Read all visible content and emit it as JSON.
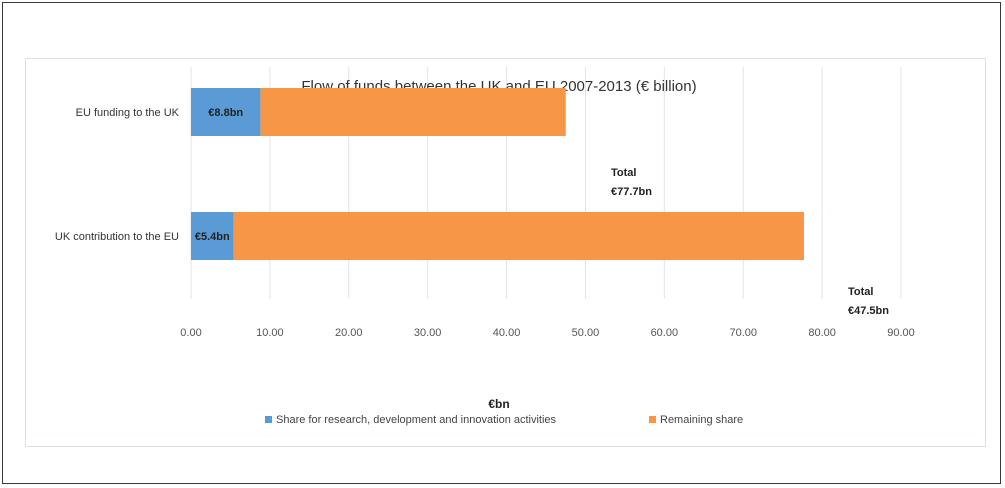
{
  "chart_data": {
    "type": "bar",
    "orientation": "horizontal",
    "stacked": true,
    "title": "Flow of funds between the UK and EU 2007-2013 (€ billion)",
    "xlabel": "€bn",
    "ylabel": "",
    "xlim": [
      0,
      90
    ],
    "x_ticks": [
      "0.00",
      "10.00",
      "20.00",
      "30.00",
      "40.00",
      "50.00",
      "60.00",
      "70.00",
      "80.00",
      "90.00"
    ],
    "categories": [
      "EU funding to the UK",
      "UK contribution to the EU"
    ],
    "series": [
      {
        "name": "Share for research, development and innovation activities",
        "values": [
          8.8,
          5.4
        ],
        "color": "#5b9bd5",
        "labels": [
          "€8.8bn",
          "€5.4bn"
        ]
      },
      {
        "name": "Remaining share",
        "values": [
          38.7,
          72.3
        ],
        "color": "#f79646"
      }
    ],
    "annotations": [
      {
        "title": "Total",
        "value": "€77.7bn"
      },
      {
        "title": "Total",
        "value": "€47.5bn"
      }
    ],
    "grid": true,
    "legend_position": "bottom"
  }
}
